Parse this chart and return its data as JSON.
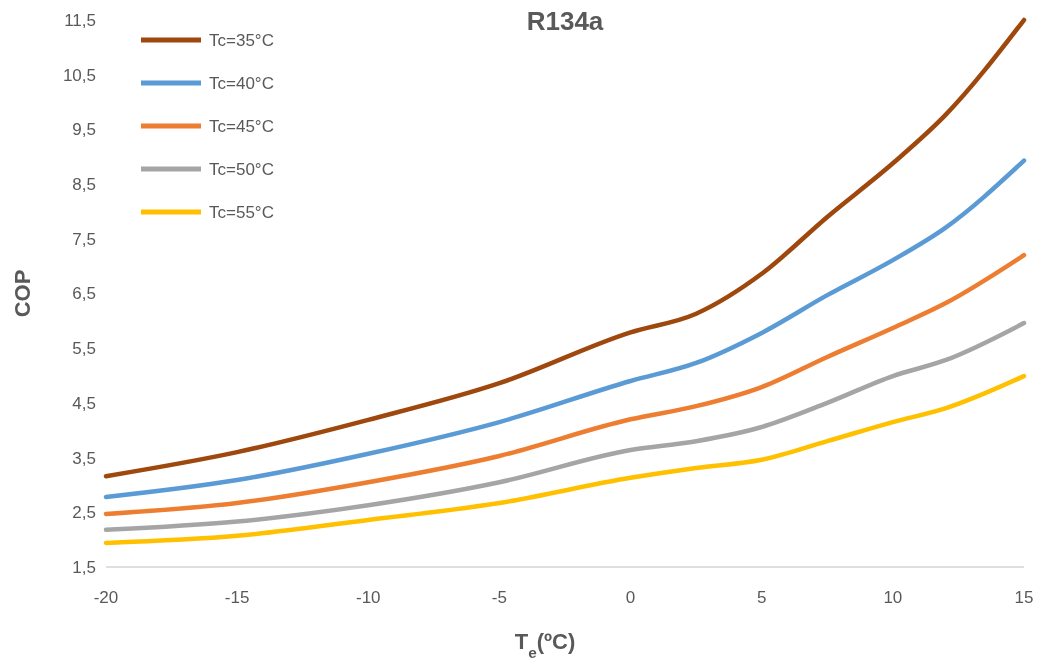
{
  "chart_data": {
    "type": "line",
    "title": "R134a",
    "xlabel": "T$_{e}$(ºC)",
    "ylabel": "COP",
    "x": [
      -20,
      -15,
      -10,
      -5,
      0,
      2.5,
      5,
      7.5,
      10,
      12,
      15
    ],
    "series": [
      {
        "name": "Tc=35°C",
        "color": "#9e480e",
        "values": [
          3.16,
          3.6,
          4.19,
          4.86,
          5.79,
          6.13,
          6.86,
          7.9,
          8.88,
          9.76,
          11.5
        ]
      },
      {
        "name": "Tc=40°C",
        "color": "#5b9bd5",
        "values": [
          2.78,
          3.09,
          3.57,
          4.15,
          4.9,
          5.23,
          5.78,
          6.47,
          7.11,
          7.7,
          8.93
        ]
      },
      {
        "name": "Tc=45°C",
        "color": "#ed7d31",
        "values": [
          2.47,
          2.67,
          3.05,
          3.53,
          4.2,
          4.44,
          4.79,
          5.34,
          5.87,
          6.32,
          7.2
        ]
      },
      {
        "name": "Tc=50°C",
        "color": "#a5a5a5",
        "values": [
          2.18,
          2.33,
          2.63,
          3.05,
          3.64,
          3.8,
          4.06,
          4.5,
          4.99,
          5.28,
          5.96
        ]
      },
      {
        "name": "Tc=55°C",
        "color": "#ffc000",
        "values": [
          1.94,
          2.07,
          2.36,
          2.67,
          3.13,
          3.31,
          3.46,
          3.8,
          4.15,
          4.4,
          4.99
        ]
      }
    ],
    "xlim": [
      -20,
      15
    ],
    "xticks": [
      -20,
      -15,
      -10,
      -5,
      0,
      5,
      10,
      15
    ],
    "ylim": [
      1.5,
      11.5
    ],
    "yticks": [
      {
        "value": 1.5,
        "label": "1,5"
      },
      {
        "value": 2.5,
        "label": "2,5"
      },
      {
        "value": 3.5,
        "label": "3,5"
      },
      {
        "value": 4.5,
        "label": "4,5"
      },
      {
        "value": 5.5,
        "label": "5,5"
      },
      {
        "value": 6.5,
        "label": "6,5"
      },
      {
        "value": 7.5,
        "label": "7,5"
      },
      {
        "value": 8.5,
        "label": "8,5"
      },
      {
        "value": 9.5,
        "label": "9,5"
      },
      {
        "value": 10.5,
        "label": "10,5"
      },
      {
        "value": 11.5,
        "label": "11,5"
      }
    ],
    "legend": "top left",
    "grid": false,
    "marker": "none",
    "line_style": "solid"
  }
}
